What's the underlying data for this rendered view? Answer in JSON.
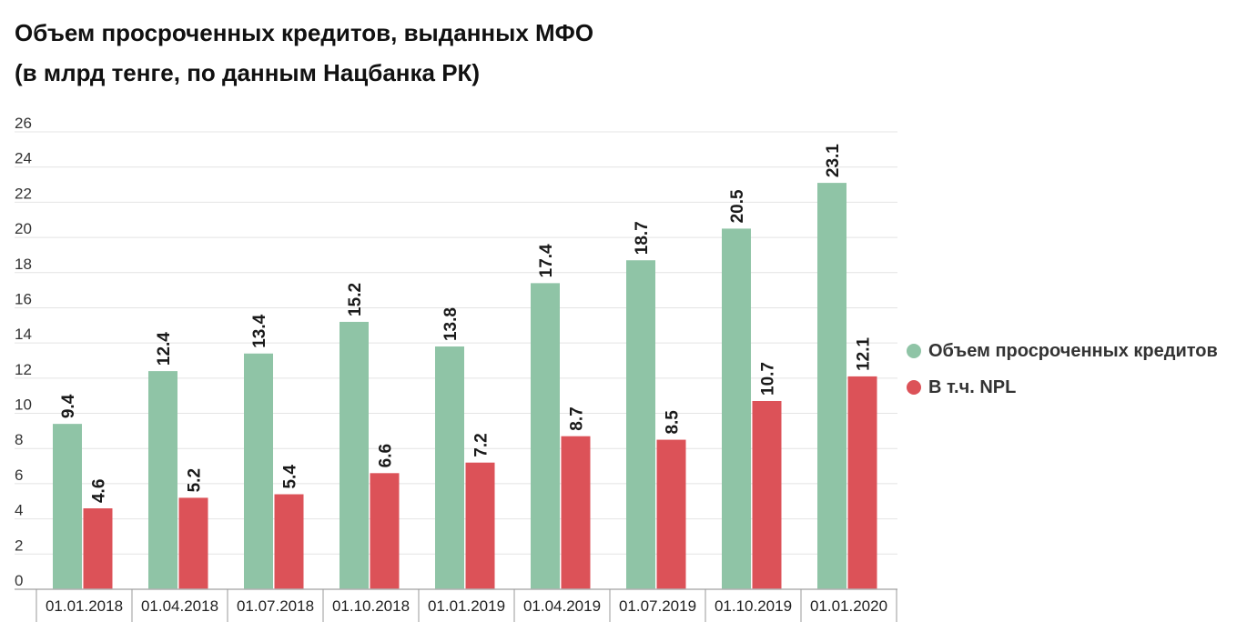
{
  "title": {
    "line1": "Объем просроченных кредитов, выданных МФО",
    "line2": "(в млрд тенге, по данным Нацбанка РК)"
  },
  "chart_data": {
    "type": "bar",
    "title": "Объем просроченных кредитов, выданных МФО (в млрд тенге, по данным Нацбанка РК)",
    "categories": [
      "01.01.2018",
      "01.04.2018",
      "01.07.2018",
      "01.10.2018",
      "01.01.2019",
      "01.04.2019",
      "01.07.2019",
      "01.10.2019",
      "01.01.2020"
    ],
    "series": [
      {
        "name": "Объем просроченных кредитов",
        "color": "#8fc4a6",
        "values": [
          9.4,
          12.4,
          13.4,
          15.2,
          13.8,
          17.4,
          18.7,
          20.5,
          23.1
        ]
      },
      {
        "name": "В т.ч. NPL",
        "color": "#dc5258",
        "values": [
          4.6,
          5.2,
          5.4,
          6.6,
          7.2,
          8.7,
          8.5,
          10.7,
          12.1
        ]
      }
    ],
    "ylim": [
      0,
      26
    ],
    "yticks": [
      0,
      2,
      4,
      6,
      8,
      10,
      12,
      14,
      16,
      18,
      20,
      22,
      24,
      26
    ],
    "grid": true,
    "legend_position": "right",
    "data_labels": true,
    "data_label_orientation": "vertical"
  },
  "legend": {
    "items": [
      {
        "label": "Объем просроченных кредитов",
        "color": "#8fc4a6"
      },
      {
        "label": "В т.ч. NPL",
        "color": "#dc5258"
      }
    ]
  }
}
